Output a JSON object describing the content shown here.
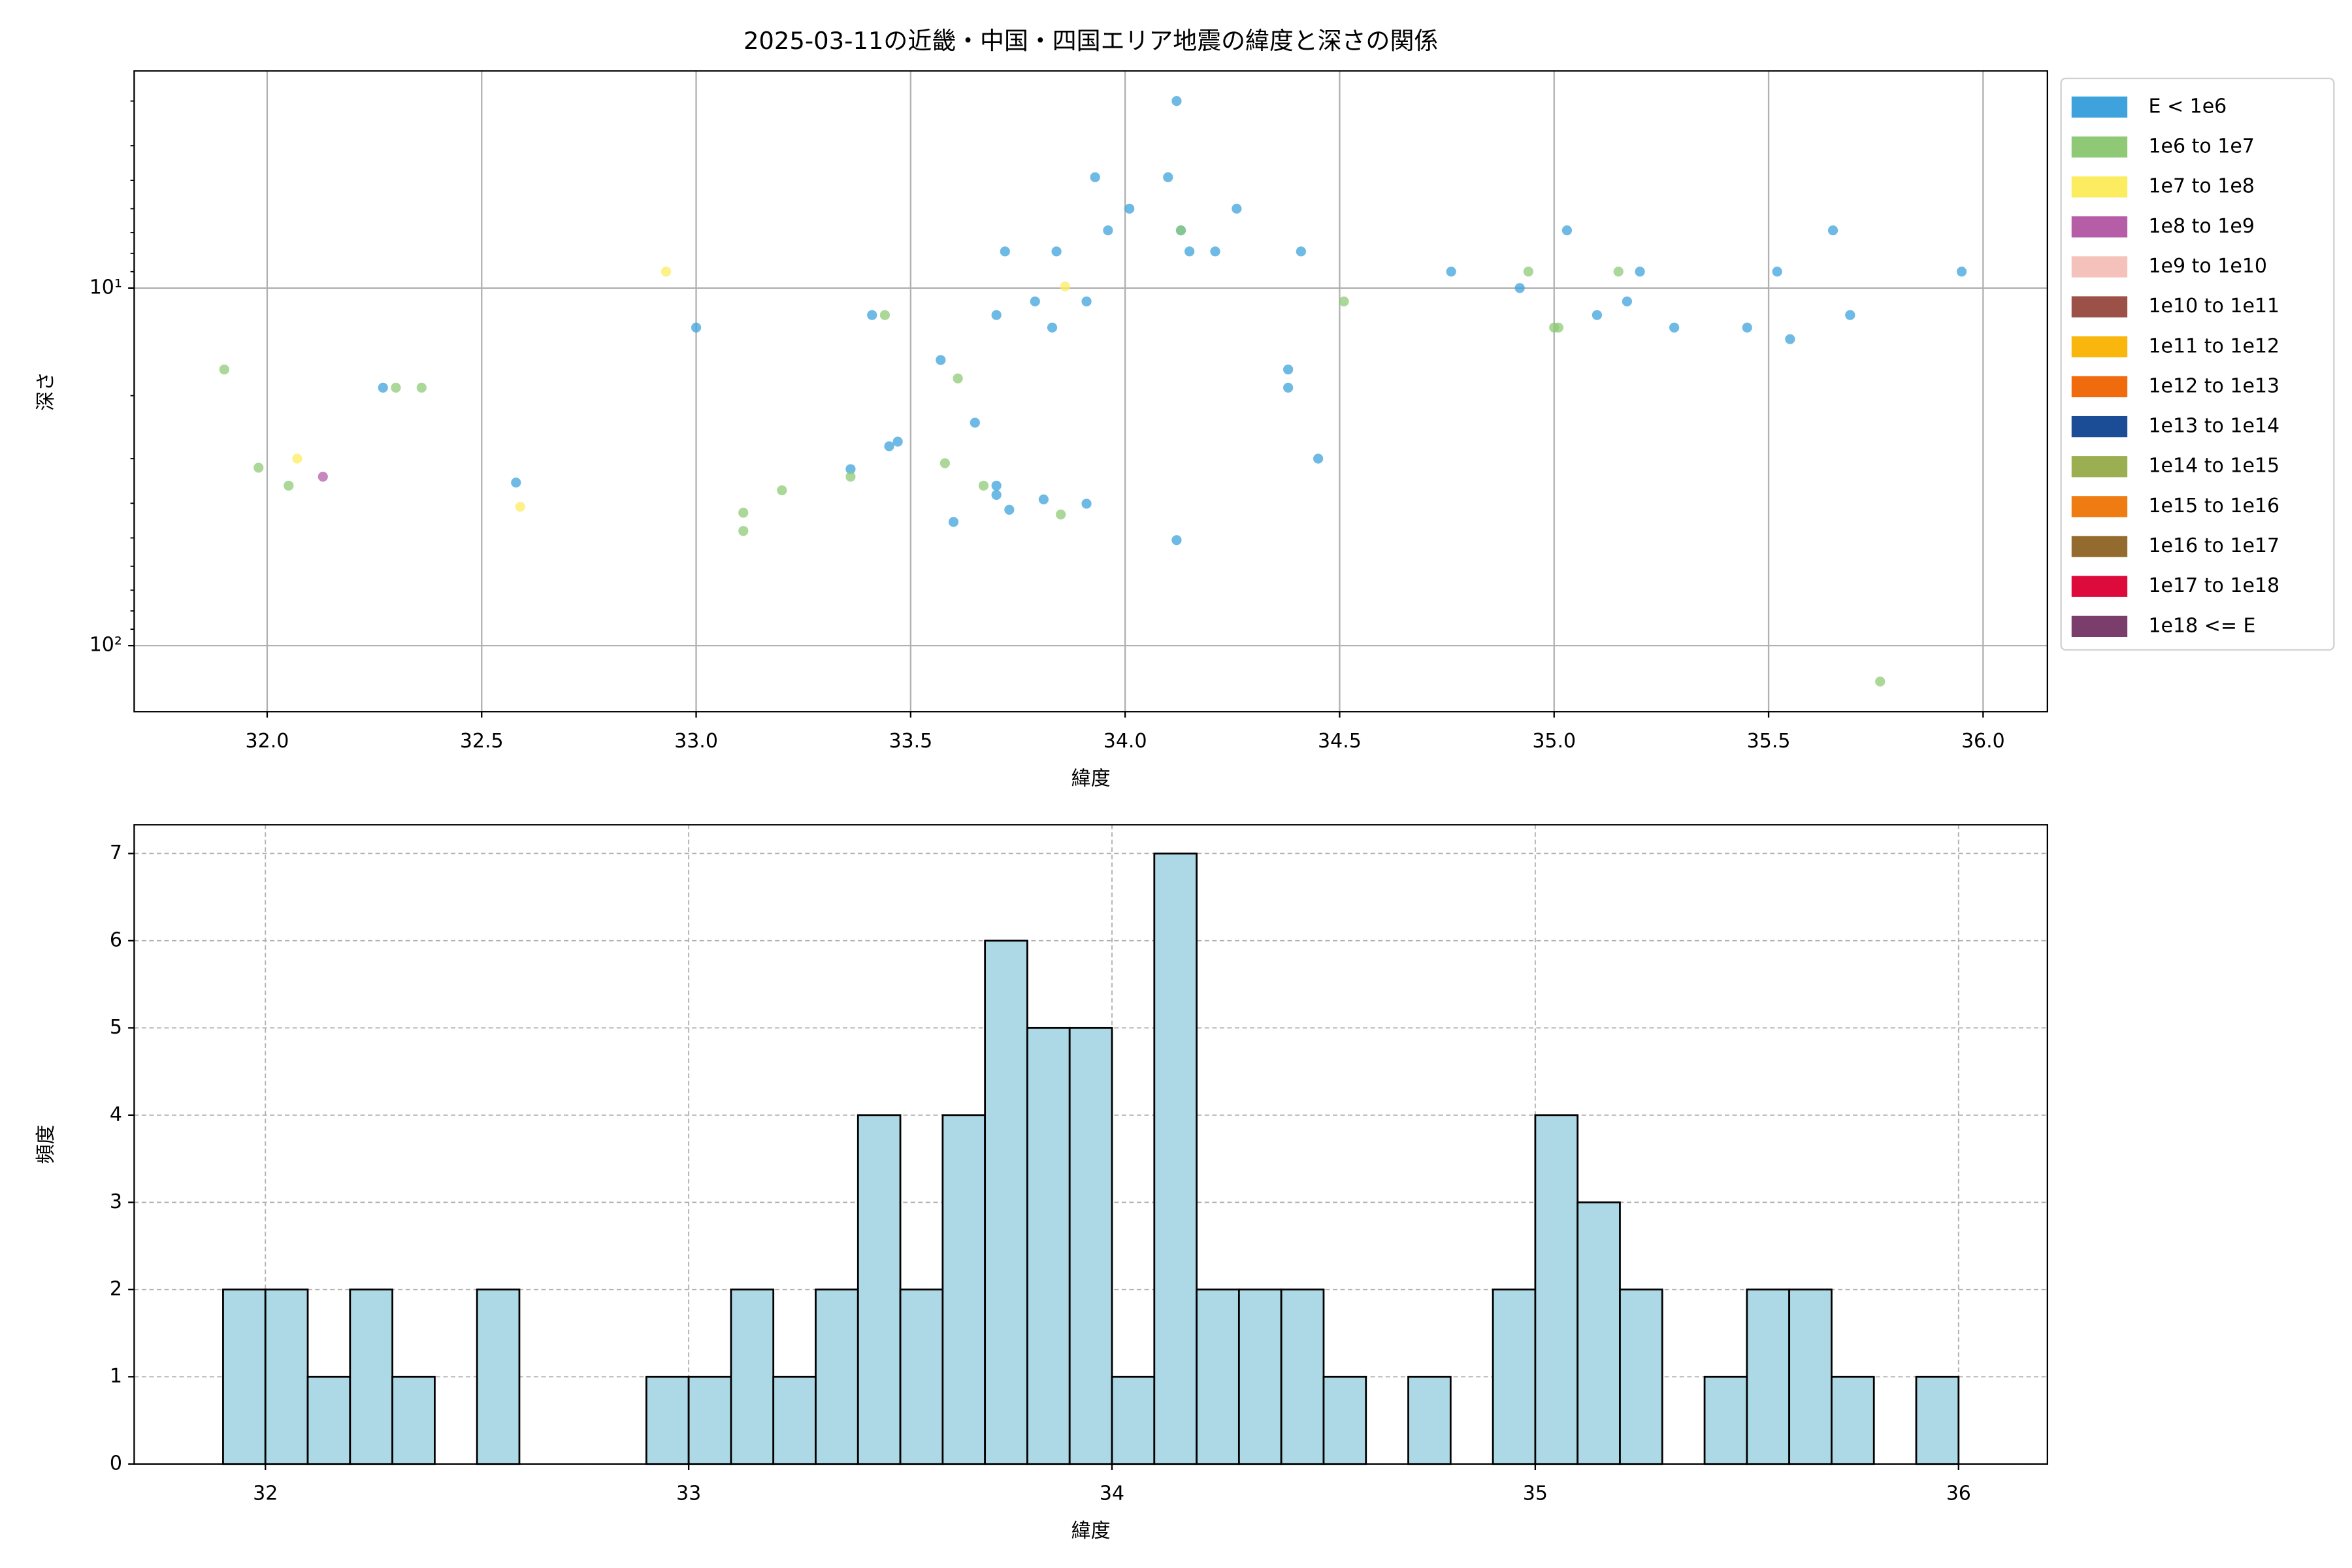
{
  "chart_data": [
    {
      "type": "scatter",
      "title": "2025-03-11の近畿・中国・四国エリア地震の緯度と深さの関係",
      "x_label": "緯度",
      "y_label": "深さ",
      "xlim": [
        31.69,
        36.15
      ],
      "xticks": [
        {
          "value": 32,
          "label": "32.0"
        },
        {
          "value": 32.5,
          "label": "32.5"
        },
        {
          "value": 33,
          "label": "33.0"
        },
        {
          "value": 33.5,
          "label": "33.5"
        },
        {
          "value": 34,
          "label": "34.0"
        },
        {
          "value": 34.5,
          "label": "34.5"
        },
        {
          "value": 35,
          "label": "35.0"
        },
        {
          "value": 35.5,
          "label": "35.5"
        },
        {
          "value": 36,
          "label": "36.0"
        }
      ],
      "ylim": [
        2.47,
        153
      ],
      "y_log": true,
      "y_inverted": true,
      "yticks": [
        {
          "value": 10,
          "label": "10¹"
        },
        {
          "value": 100,
          "label": "10²"
        }
      ],
      "yminorticks": [
        3,
        4,
        5,
        6,
        7,
        8,
        9,
        20,
        30,
        40,
        50,
        60,
        70,
        80,
        90
      ],
      "grid": true,
      "legend": "outside-upper-right",
      "series": [
        {
          "name": "E < 1e6",
          "color": "#3ea3dc",
          "x": [
            32.27,
            32.58,
            33.0,
            33.36,
            33.41,
            33.45,
            33.47,
            33.57,
            33.6,
            33.65,
            33.7,
            33.7,
            33.7,
            33.72,
            33.73,
            33.79,
            33.81,
            33.83,
            33.84,
            33.91,
            33.91,
            33.93,
            33.96,
            34.01,
            34.1,
            34.12,
            34.12,
            34.13,
            34.15,
            34.21,
            34.26,
            34.38,
            34.38,
            34.41,
            34.45,
            34.76,
            34.92,
            35.03,
            35.1,
            35.17,
            35.2,
            35.28,
            35.45,
            35.52,
            35.55,
            35.65,
            35.69,
            35.95
          ],
          "values": [
            19.0,
            35.0,
            12.9,
            32.1,
            11.9,
            27.7,
            26.9,
            15.9,
            45.1,
            23.8,
            37.9,
            35.7,
            11.9,
            7.9,
            41.7,
            10.9,
            39.0,
            12.9,
            7.9,
            10.9,
            40.1,
            4.9,
            6.9,
            6.0,
            4.9,
            3.0,
            50.7,
            6.9,
            7.9,
            7.9,
            6.0,
            16.9,
            19.0,
            7.9,
            30.0,
            9.0,
            10.0,
            6.9,
            11.9,
            10.9,
            9.0,
            12.9,
            12.9,
            9.0,
            13.9,
            6.9,
            11.9,
            9.0
          ]
        },
        {
          "name": "1e6 to 1e7",
          "color": "#8fc975",
          "x": [
            31.9,
            31.98,
            32.05,
            32.3,
            32.36,
            33.11,
            33.11,
            33.2,
            33.36,
            33.44,
            33.58,
            33.61,
            33.67,
            33.85,
            34.13,
            34.51,
            34.94,
            35.0,
            35.01,
            35.15,
            35.76
          ],
          "values": [
            16.9,
            31.8,
            35.7,
            19.0,
            19.0,
            42.5,
            47.8,
            36.8,
            33.7,
            11.9,
            30.9,
            17.9,
            35.7,
            43.0,
            6.9,
            10.9,
            9.0,
            12.9,
            12.9,
            9.0,
            126
          ]
        },
        {
          "name": "1e7 to 1e8",
          "color": "#fcec60",
          "x": [
            32.07,
            32.59,
            32.93,
            33.86
          ],
          "values": [
            30.0,
            40.9,
            9.0,
            9.9
          ]
        },
        {
          "name": "1e8 to 1e9",
          "color": "#b65da8",
          "x": [
            32.13
          ],
          "values": [
            33.7
          ]
        },
        {
          "name": "1e9 to 1e10",
          "color": "#f4c1bb",
          "x": [],
          "values": []
        },
        {
          "name": "1e10 to 1e11",
          "color": "#9c5148",
          "x": [],
          "values": []
        },
        {
          "name": "1e11 to 1e12",
          "color": "#f9b60c",
          "x": [],
          "values": []
        },
        {
          "name": "1e12 to 1e13",
          "color": "#ef6b0d",
          "x": [],
          "values": []
        },
        {
          "name": "1e13 to 1e14",
          "color": "#1b4d96",
          "x": [],
          "values": []
        },
        {
          "name": "1e14 to 1e15",
          "color": "#9cae52",
          "x": [],
          "values": []
        },
        {
          "name": "1e15 to 1e16",
          "color": "#ee7c12",
          "x": [],
          "values": []
        },
        {
          "name": "1e16 to 1e17",
          "color": "#936b2e",
          "x": [],
          "values": []
        },
        {
          "name": "1e17 to 1e18",
          "color": "#dc0b3c",
          "x": [],
          "values": []
        },
        {
          "name": "1e18 <= E",
          "color": "#7b3e6c",
          "x": [],
          "values": []
        }
      ]
    },
    {
      "type": "histogram",
      "x_label": "緯度",
      "y_label": "頻度",
      "color": "#add8e6",
      "edge_color": "#000000",
      "bins": [
        31.9,
        32.0,
        32.1,
        32.2,
        32.3,
        32.4,
        32.5,
        32.6,
        32.7,
        32.8,
        32.9,
        33.0,
        33.1,
        33.2,
        33.3,
        33.4,
        33.5,
        33.6,
        33.7,
        33.8,
        33.9,
        34.0,
        34.1,
        34.2,
        34.3,
        34.4,
        34.5,
        34.6,
        34.7,
        34.8,
        34.9,
        35.0,
        35.1,
        35.2,
        35.3,
        35.4,
        35.5,
        35.6,
        35.7,
        35.8,
        35.9,
        36.0
      ],
      "values": [
        2,
        2,
        1,
        2,
        1,
        0,
        2,
        0,
        0,
        0,
        1,
        1,
        2,
        1,
        2,
        4,
        2,
        4,
        6,
        5,
        5,
        1,
        7,
        2,
        2,
        2,
        1,
        0,
        1,
        0,
        2,
        4,
        3,
        2,
        0,
        1,
        2,
        2,
        1,
        0,
        1
      ],
      "xlim": [
        31.69,
        36.21
      ],
      "xticks": [
        32,
        33,
        34,
        35,
        36
      ],
      "ylim": [
        0,
        7.33
      ],
      "yticks": [
        0,
        1,
        2,
        3,
        4,
        5,
        6,
        7
      ],
      "grid": "dashed"
    }
  ]
}
